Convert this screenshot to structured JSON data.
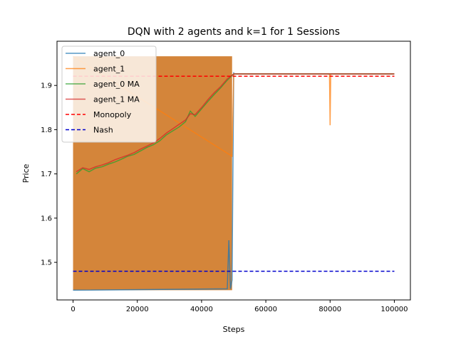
{
  "chart_data": {
    "type": "line",
    "title": "DQN with 2 agents and k=1 for 1 Sessions",
    "xlabel": "Steps",
    "ylabel": "Price",
    "xlim": [
      -5000,
      105000
    ],
    "ylim": [
      1.415,
      2.0
    ],
    "x_ticks": [
      0,
      20000,
      40000,
      60000,
      80000,
      100000
    ],
    "x_tick_labels": [
      "0",
      "20000",
      "40000",
      "60000",
      "80000",
      "100000"
    ],
    "y_ticks": [
      1.5,
      1.6,
      1.7,
      1.8,
      1.9
    ],
    "y_tick_labels": [
      "1.5",
      "1.6",
      "1.7",
      "1.8",
      "1.9"
    ],
    "grid": false,
    "legend_position": "top-left",
    "exploration_band": {
      "x_start": 0,
      "x_end": 49500,
      "y_low": 1.437,
      "y_high": 1.966
    },
    "series": [
      {
        "name": "agent_0",
        "color": "#1f77b4",
        "points": [
          [
            0,
            1.437
          ],
          [
            48000,
            1.44
          ],
          [
            48500,
            1.55
          ],
          [
            49000,
            1.44
          ],
          [
            49500,
            1.46
          ],
          [
            50000,
            1.93
          ],
          [
            50001,
            1.926
          ],
          [
            100000,
            1.926
          ]
        ]
      },
      {
        "name": "agent_1",
        "color": "#ff7f0e",
        "points": [
          [
            0,
            1.966
          ],
          [
            49500,
            1.74
          ],
          [
            50000,
            1.926
          ],
          [
            79800,
            1.926
          ],
          [
            80000,
            1.81
          ],
          [
            80200,
            1.926
          ],
          [
            100000,
            1.926
          ]
        ]
      },
      {
        "name": "agent_0 MA",
        "color": "#2ca02c",
        "points": [
          [
            1000,
            1.7
          ],
          [
            3000,
            1.712
          ],
          [
            5000,
            1.705
          ],
          [
            7000,
            1.713
          ],
          [
            9000,
            1.716
          ],
          [
            11000,
            1.722
          ],
          [
            13000,
            1.727
          ],
          [
            15000,
            1.733
          ],
          [
            17000,
            1.74
          ],
          [
            19000,
            1.744
          ],
          [
            21000,
            1.752
          ],
          [
            23000,
            1.76
          ],
          [
            25000,
            1.766
          ],
          [
            27000,
            1.775
          ],
          [
            29000,
            1.788
          ],
          [
            31000,
            1.797
          ],
          [
            33000,
            1.806
          ],
          [
            35000,
            1.818
          ],
          [
            36500,
            1.842
          ],
          [
            38000,
            1.83
          ],
          [
            40000,
            1.847
          ],
          [
            42000,
            1.864
          ],
          [
            44000,
            1.88
          ],
          [
            46000,
            1.895
          ],
          [
            48000,
            1.912
          ],
          [
            50000,
            1.926
          ],
          [
            100000,
            1.926
          ]
        ]
      },
      {
        "name": "agent_1 MA",
        "color": "#d62728",
        "points": [
          [
            1000,
            1.705
          ],
          [
            3000,
            1.714
          ],
          [
            5000,
            1.71
          ],
          [
            7000,
            1.716
          ],
          [
            9000,
            1.72
          ],
          [
            11000,
            1.725
          ],
          [
            13000,
            1.732
          ],
          [
            15000,
            1.737
          ],
          [
            17000,
            1.742
          ],
          [
            19000,
            1.748
          ],
          [
            21000,
            1.756
          ],
          [
            23000,
            1.763
          ],
          [
            25000,
            1.77
          ],
          [
            27000,
            1.78
          ],
          [
            29000,
            1.792
          ],
          [
            31000,
            1.802
          ],
          [
            33000,
            1.812
          ],
          [
            35000,
            1.822
          ],
          [
            36500,
            1.836
          ],
          [
            38000,
            1.834
          ],
          [
            40000,
            1.85
          ],
          [
            42000,
            1.868
          ],
          [
            44000,
            1.884
          ],
          [
            46000,
            1.898
          ],
          [
            48000,
            1.915
          ],
          [
            50000,
            1.926
          ],
          [
            100000,
            1.926
          ]
        ]
      },
      {
        "name": "Monopoly",
        "color": "#ff0000",
        "dashed": true,
        "points": [
          [
            0,
            1.921
          ],
          [
            100000,
            1.921
          ]
        ]
      },
      {
        "name": "Nash",
        "color": "#0000cc",
        "dashed": true,
        "points": [
          [
            0,
            1.48
          ],
          [
            100000,
            1.48
          ]
        ]
      }
    ]
  }
}
